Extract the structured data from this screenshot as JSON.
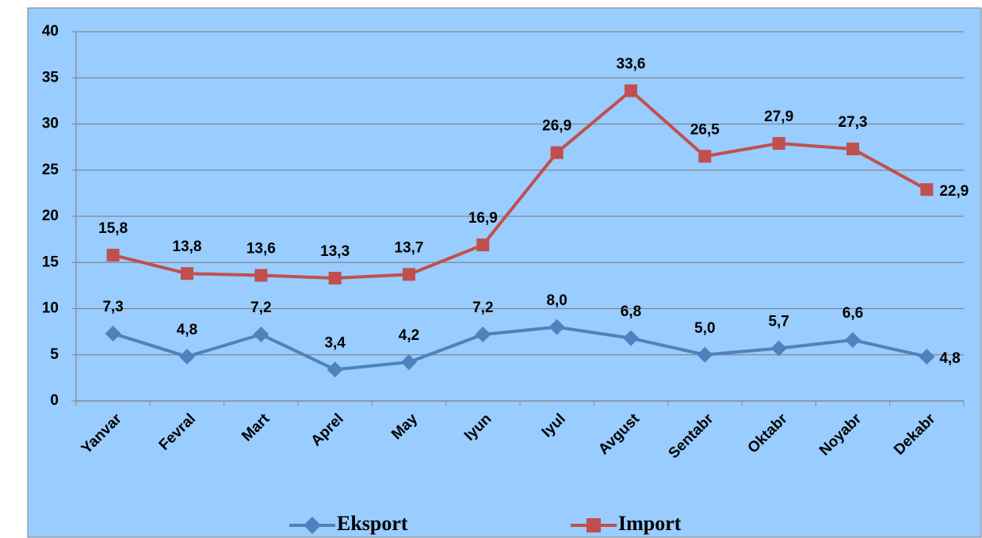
{
  "chart_data": {
    "type": "line",
    "categories": [
      "Yanvar",
      "Fevral",
      "Mart",
      "Aprel",
      "May",
      "Iyun",
      "Iyul",
      "Avgust",
      "Sentabr",
      "Oktabr",
      "Noyabr",
      "Dekabr"
    ],
    "series": [
      {
        "name": "Eksport",
        "color": "#4f81bd",
        "marker": "diamond",
        "values": [
          7.3,
          4.8,
          7.2,
          3.4,
          4.2,
          7.2,
          8.0,
          6.8,
          5.0,
          5.7,
          6.6,
          4.8
        ],
        "value_labels": [
          "7,3",
          "4,8",
          "7,2",
          "3,4",
          "4,2",
          "7,2",
          "8,0",
          "6,8",
          "5,0",
          "5,7",
          "6,6",
          "4,8"
        ]
      },
      {
        "name": "Import",
        "color": "#c0504d",
        "marker": "square",
        "values": [
          15.8,
          13.8,
          13.6,
          13.3,
          13.7,
          16.9,
          26.9,
          33.6,
          26.5,
          27.9,
          27.3,
          22.9
        ],
        "value_labels": [
          "15,8",
          "13,8",
          "13,6",
          "13,3",
          "13,7",
          "16,9",
          "26,9",
          "33,6",
          "26,5",
          "27,9",
          "27,3",
          "22,9"
        ]
      }
    ],
    "ylim": [
      0,
      40
    ],
    "yticks": [
      0,
      5,
      10,
      15,
      20,
      25,
      30,
      35,
      40
    ],
    "grid": true,
    "legend": "bottom",
    "background": "#99ccff"
  }
}
